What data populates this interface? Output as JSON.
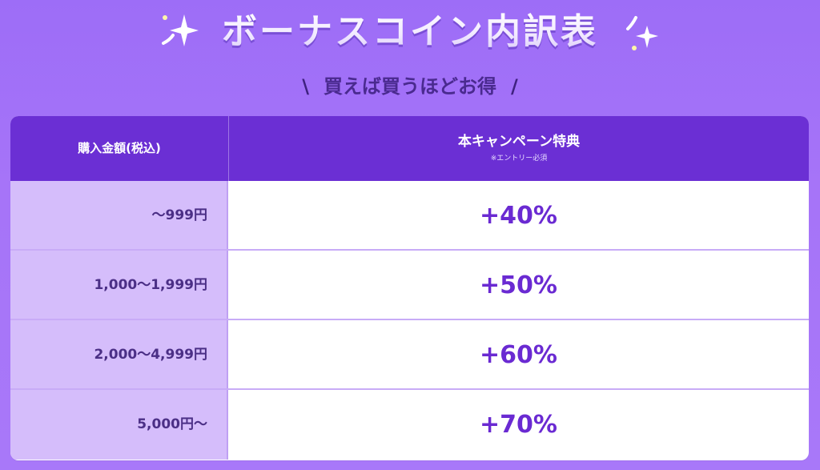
{
  "header": {
    "title": "ボーナスコイン内訳表",
    "subtitle": "買えば買うほどお得",
    "subtitle_left_mark": "\\",
    "subtitle_right_mark": "/"
  },
  "table": {
    "col_amount_label": "購入金額(税込)",
    "col_bonus_label": "本キャンペーン特典",
    "col_bonus_note": "※エントリー必須",
    "rows": [
      {
        "amount": "〜999円",
        "bonus": "+40%"
      },
      {
        "amount": "1,000〜1,999円",
        "bonus": "+50%"
      },
      {
        "amount": "2,000〜4,999円",
        "bonus": "+60%"
      },
      {
        "amount": "5,000円〜",
        "bonus": "+70%"
      }
    ]
  },
  "colors": {
    "background": "#a674f8",
    "header_row": "#6b2fd4",
    "amount_cell": "#d5bdfb",
    "bonus_text": "#6a2ad2"
  },
  "icons": [
    "sparkle-icon",
    "sparkle-icon"
  ]
}
